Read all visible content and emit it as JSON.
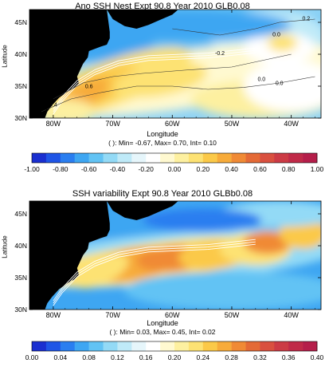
{
  "chart_data": [
    {
      "type": "heatmap",
      "title": "Ano SSH Nest Expt 90.8  Year  2010 GLB0.08",
      "xlabel": "Longitude",
      "ylabel": "Latitude",
      "x_ticks": [
        "80W",
        "70W",
        "60W",
        "50W",
        "40W"
      ],
      "x_tick_values": [
        -80,
        -70,
        -60,
        -50,
        -40
      ],
      "y_ticks": [
        "30N",
        "35N",
        "40N",
        "45N"
      ],
      "y_tick_values": [
        30,
        35,
        40,
        45
      ],
      "xlim": [
        -84,
        -35
      ],
      "ylim": [
        30,
        47
      ],
      "stats": "( ): Min= -0.67, Max= 0.70, Int= 0.10",
      "min": -0.67,
      "max": 0.7,
      "interval": 0.1,
      "colorbar": {
        "labels": [
          "-1.00",
          "-0.80",
          "-0.60",
          "-0.40",
          "-0.20",
          "0.00",
          "0.20",
          "0.40",
          "0.60",
          "0.80",
          "1.00"
        ],
        "range": [
          -1.0,
          1.0
        ],
        "colors": [
          "#1a2fd0",
          "#1f55e6",
          "#2a7ef0",
          "#3ea6f2",
          "#62c3f4",
          "#93daf6",
          "#bfeaf8",
          "#e6f6fb",
          "#ffffff",
          "#fff9d0",
          "#fdf0a0",
          "#fde273",
          "#fbc948",
          "#f7ab3a",
          "#f08a35",
          "#e46a36",
          "#d9503f",
          "#cc3b45",
          "#c02a48",
          "#b51e4a"
        ]
      },
      "contour_labels": [
        "0.2",
        "0.0",
        "0.0",
        "0.6",
        "0.4",
        "0.2",
        "-0.2",
        "0.0"
      ]
    },
    {
      "type": "heatmap",
      "title": "SSH variability Expt 90.8 Year 2010 GLBb0.08",
      "xlabel": "Longitude",
      "ylabel": "Latitude",
      "x_ticks": [
        "80W",
        "70W",
        "60W",
        "50W",
        "40W"
      ],
      "x_tick_values": [
        -80,
        -70,
        -60,
        -50,
        -40
      ],
      "y_ticks": [
        "30N",
        "35N",
        "40N",
        "45N"
      ],
      "y_tick_values": [
        30,
        35,
        40,
        45
      ],
      "xlim": [
        -84,
        -35
      ],
      "ylim": [
        30,
        47
      ],
      "stats": "( ): Min= 0.03, Max= 0.45, Int= 0.02",
      "min": 0.03,
      "max": 0.45,
      "interval": 0.02,
      "colorbar": {
        "labels": [
          "0.00",
          "0.04",
          "0.08",
          "0.12",
          "0.16",
          "0.20",
          "0.24",
          "0.28",
          "0.32",
          "0.36",
          "0.40"
        ],
        "range": [
          0.0,
          0.4
        ],
        "colors": [
          "#1a2fd0",
          "#1f55e6",
          "#2a7ef0",
          "#3ea6f2",
          "#62c3f4",
          "#93daf6",
          "#bfeaf8",
          "#e6f6fb",
          "#ffffff",
          "#fff9d0",
          "#fdf0a0",
          "#fde273",
          "#fbc948",
          "#f7ab3a",
          "#f08a35",
          "#e46a36",
          "#d9503f",
          "#cc3b45",
          "#c02a48",
          "#b51e4a"
        ]
      }
    }
  ]
}
